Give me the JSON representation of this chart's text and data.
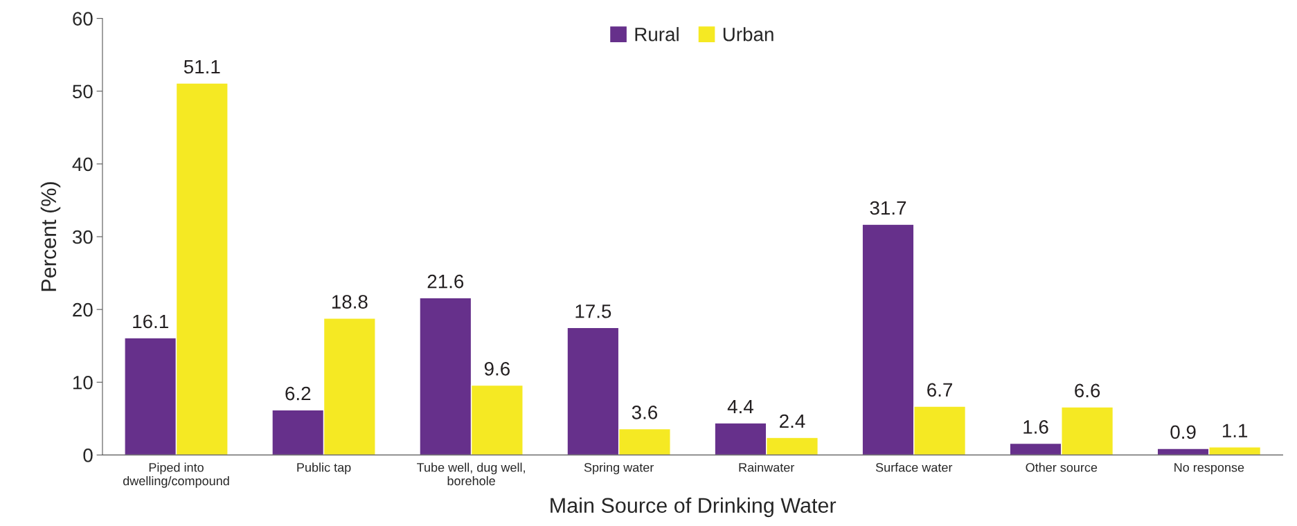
{
  "chart_data": {
    "type": "bar",
    "xlabel": "Main Source of Drinking Water",
    "ylabel": "Percent (%)",
    "categories": [
      "Piped into\ndwelling/compound",
      "Public tap",
      "Tube well, dug well,\nborehole",
      "Spring water",
      "Rainwater",
      "Surface water",
      "Other source",
      "No response"
    ],
    "series": [
      {
        "name": "Rural",
        "color": "#66308b",
        "values": [
          16.1,
          6.2,
          21.6,
          17.5,
          4.4,
          31.7,
          1.6,
          0.9
        ]
      },
      {
        "name": "Urban",
        "color": "#f5e923",
        "values": [
          51.1,
          18.8,
          9.6,
          3.6,
          2.4,
          6.7,
          6.6,
          1.1
        ]
      }
    ],
    "ylim": [
      0,
      60
    ],
    "yticks": [
      0,
      10,
      20,
      30,
      40,
      50,
      60
    ],
    "data_labels": true,
    "legend": "top",
    "grid": false
  }
}
